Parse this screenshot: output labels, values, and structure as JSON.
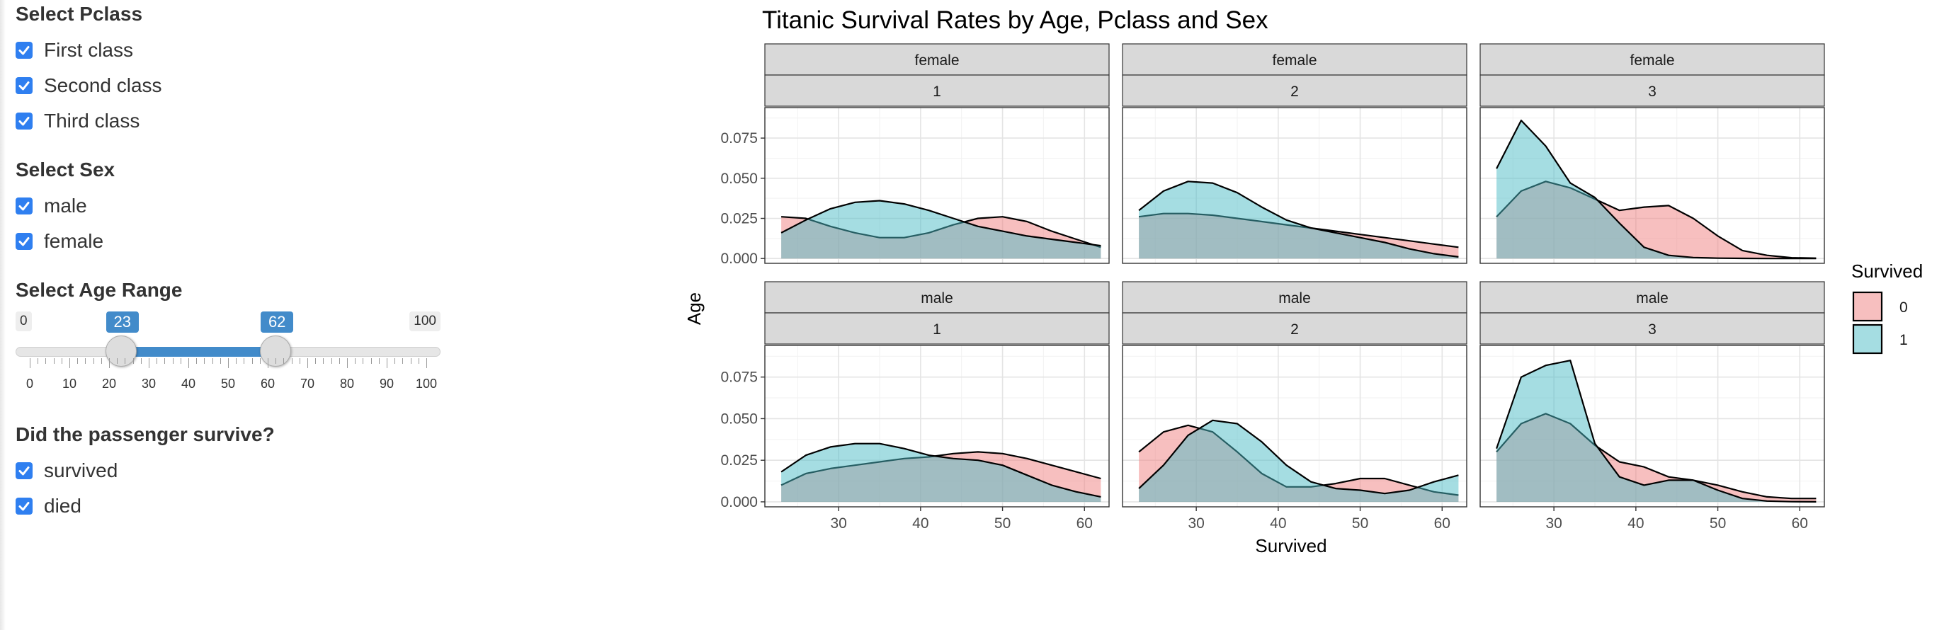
{
  "sidebar": {
    "pclass": {
      "title": "Select Pclass",
      "options": [
        {
          "label": "First class",
          "checked": true
        },
        {
          "label": "Second class",
          "checked": true
        },
        {
          "label": "Third class",
          "checked": true
        }
      ]
    },
    "sex": {
      "title": "Select Sex",
      "options": [
        {
          "label": "male",
          "checked": true
        },
        {
          "label": "female",
          "checked": true
        }
      ]
    },
    "age": {
      "title": "Select Age Range",
      "min": 0,
      "max": 100,
      "from": 23,
      "to": 62,
      "min_label": "0",
      "max_label": "100",
      "from_label": "23",
      "to_label": "62",
      "ticks": [
        "0",
        "10",
        "20",
        "30",
        "40",
        "50",
        "60",
        "70",
        "80",
        "90",
        "100"
      ]
    },
    "survive": {
      "title": "Did the passenger survive?",
      "options": [
        {
          "label": "survived",
          "checked": true
        },
        {
          "label": "died",
          "checked": true
        }
      ]
    }
  },
  "colors": {
    "checkbox": "#2f7ff0",
    "slider_accent": "#428bca",
    "series_0": "#f08080",
    "series_1": "#4cbbc6",
    "strip": "#d9d9d9"
  },
  "chart_data": {
    "type": "area",
    "title": "Titanic Survival Rates by Age, Pclass and Sex",
    "xlabel": "Survived",
    "ylabel": "Age",
    "xlim": [
      21,
      63
    ],
    "ylim": [
      -0.003,
      0.094
    ],
    "xticks": [
      30,
      40,
      50,
      60
    ],
    "yticks": [
      0.0,
      0.025,
      0.05,
      0.075
    ],
    "ytick_labels": [
      "0.000",
      "0.025",
      "0.050",
      "0.075"
    ],
    "grid": true,
    "legend": {
      "title": "Survived",
      "position": "right",
      "entries": [
        "0",
        "1"
      ]
    },
    "x": [
      23,
      26,
      29,
      32,
      35,
      38,
      41,
      44,
      47,
      50,
      53,
      56,
      59,
      62
    ],
    "panels": [
      {
        "sex": "female",
        "pclass": "1",
        "series": [
          {
            "name": "0",
            "values": [
              0.026,
              0.025,
              0.02,
              0.016,
              0.013,
              0.013,
              0.016,
              0.021,
              0.025,
              0.026,
              0.023,
              0.017,
              0.012,
              0.007
            ]
          },
          {
            "name": "1",
            "values": [
              0.016,
              0.024,
              0.031,
              0.035,
              0.036,
              0.034,
              0.03,
              0.025,
              0.02,
              0.017,
              0.014,
              0.012,
              0.01,
              0.008
            ]
          }
        ]
      },
      {
        "sex": "female",
        "pclass": "2",
        "series": [
          {
            "name": "0",
            "values": [
              0.026,
              0.028,
              0.028,
              0.027,
              0.025,
              0.023,
              0.021,
              0.019,
              0.017,
              0.015,
              0.013,
              0.011,
              0.009,
              0.007
            ]
          },
          {
            "name": "1",
            "values": [
              0.03,
              0.042,
              0.048,
              0.047,
              0.041,
              0.032,
              0.024,
              0.019,
              0.016,
              0.013,
              0.01,
              0.006,
              0.003,
              0.001
            ]
          }
        ]
      },
      {
        "sex": "female",
        "pclass": "3",
        "series": [
          {
            "name": "0",
            "values": [
              0.026,
              0.042,
              0.048,
              0.044,
              0.037,
              0.03,
              0.032,
              0.033,
              0.025,
              0.014,
              0.005,
              0.002,
              0.0005,
              0.0002
            ]
          },
          {
            "name": "1",
            "values": [
              0.056,
              0.086,
              0.07,
              0.047,
              0.038,
              0.022,
              0.007,
              0.002,
              0.0006,
              0.0002,
              0.0001,
              0.0,
              0.0,
              0.0
            ]
          }
        ]
      },
      {
        "sex": "male",
        "pclass": "1",
        "series": [
          {
            "name": "0",
            "values": [
              0.01,
              0.017,
              0.02,
              0.022,
              0.024,
              0.026,
              0.027,
              0.029,
              0.03,
              0.029,
              0.026,
              0.022,
              0.018,
              0.014
            ]
          },
          {
            "name": "1",
            "values": [
              0.018,
              0.028,
              0.033,
              0.035,
              0.035,
              0.032,
              0.028,
              0.026,
              0.025,
              0.022,
              0.016,
              0.01,
              0.006,
              0.003
            ]
          }
        ]
      },
      {
        "sex": "male",
        "pclass": "2",
        "series": [
          {
            "name": "0",
            "values": [
              0.03,
              0.042,
              0.046,
              0.042,
              0.03,
              0.017,
              0.009,
              0.009,
              0.011,
              0.014,
              0.014,
              0.01,
              0.006,
              0.004
            ]
          },
          {
            "name": "1",
            "values": [
              0.008,
              0.022,
              0.04,
              0.049,
              0.047,
              0.036,
              0.022,
              0.012,
              0.008,
              0.007,
              0.005,
              0.007,
              0.012,
              0.016
            ]
          }
        ]
      },
      {
        "sex": "male",
        "pclass": "3",
        "series": [
          {
            "name": "0",
            "values": [
              0.03,
              0.047,
              0.053,
              0.047,
              0.034,
              0.024,
              0.021,
              0.015,
              0.013,
              0.01,
              0.006,
              0.003,
              0.002,
              0.002
            ]
          },
          {
            "name": "1",
            "values": [
              0.032,
              0.075,
              0.082,
              0.085,
              0.035,
              0.015,
              0.01,
              0.013,
              0.013,
              0.007,
              0.002,
              0.0005,
              0.0001,
              0.0
            ]
          }
        ]
      }
    ]
  }
}
